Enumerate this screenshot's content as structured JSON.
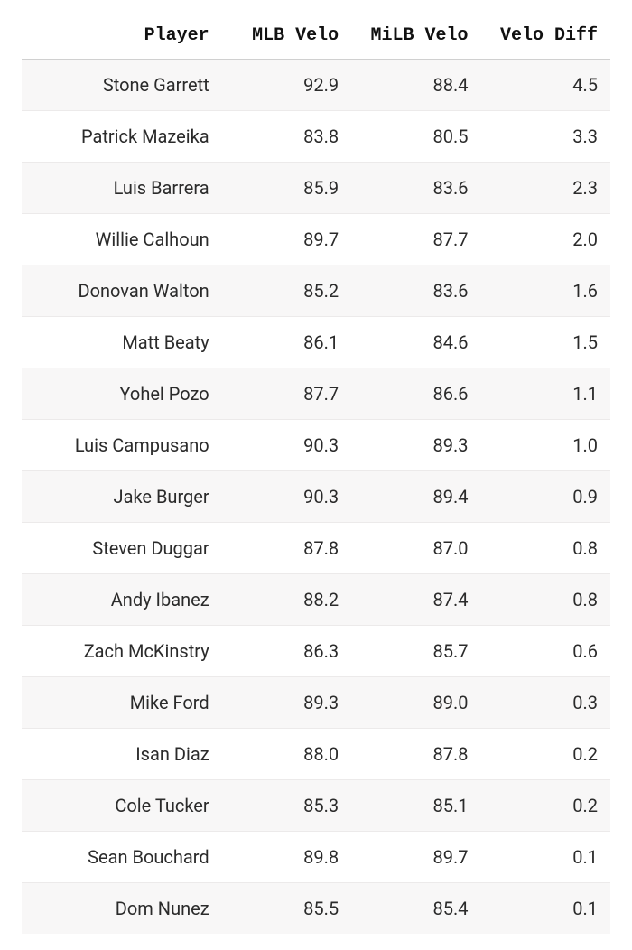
{
  "table": {
    "columns": [
      {
        "key": "player",
        "label": "Player"
      },
      {
        "key": "mlb_velo",
        "label": "MLB Velo"
      },
      {
        "key": "milb_velo",
        "label": "MiLB Velo"
      },
      {
        "key": "velo_diff",
        "label": "Velo Diff"
      }
    ],
    "rows": [
      {
        "player": "Stone Garrett",
        "mlb_velo": "92.9",
        "milb_velo": "88.4",
        "velo_diff": "4.5"
      },
      {
        "player": "Patrick Mazeika",
        "mlb_velo": "83.8",
        "milb_velo": "80.5",
        "velo_diff": "3.3"
      },
      {
        "player": "Luis Barrera",
        "mlb_velo": "85.9",
        "milb_velo": "83.6",
        "velo_diff": "2.3"
      },
      {
        "player": "Willie Calhoun",
        "mlb_velo": "89.7",
        "milb_velo": "87.7",
        "velo_diff": "2.0"
      },
      {
        "player": "Donovan Walton",
        "mlb_velo": "85.2",
        "milb_velo": "83.6",
        "velo_diff": "1.6"
      },
      {
        "player": "Matt Beaty",
        "mlb_velo": "86.1",
        "milb_velo": "84.6",
        "velo_diff": "1.5"
      },
      {
        "player": "Yohel Pozo",
        "mlb_velo": "87.7",
        "milb_velo": "86.6",
        "velo_diff": "1.1"
      },
      {
        "player": "Luis Campusano",
        "mlb_velo": "90.3",
        "milb_velo": "89.3",
        "velo_diff": "1.0"
      },
      {
        "player": "Jake Burger",
        "mlb_velo": "90.3",
        "milb_velo": "89.4",
        "velo_diff": "0.9"
      },
      {
        "player": "Steven Duggar",
        "mlb_velo": "87.8",
        "milb_velo": "87.0",
        "velo_diff": "0.8"
      },
      {
        "player": "Andy Ibanez",
        "mlb_velo": "88.2",
        "milb_velo": "87.4",
        "velo_diff": "0.8"
      },
      {
        "player": "Zach McKinstry",
        "mlb_velo": "86.3",
        "milb_velo": "85.7",
        "velo_diff": "0.6"
      },
      {
        "player": "Mike Ford",
        "mlb_velo": "89.3",
        "milb_velo": "89.0",
        "velo_diff": "0.3"
      },
      {
        "player": "Isan Diaz",
        "mlb_velo": "88.0",
        "milb_velo": "87.8",
        "velo_diff": "0.2"
      },
      {
        "player": "Cole Tucker",
        "mlb_velo": "85.3",
        "milb_velo": "85.1",
        "velo_diff": "0.2"
      },
      {
        "player": "Sean Bouchard",
        "mlb_velo": "89.8",
        "milb_velo": "89.7",
        "velo_diff": "0.1"
      },
      {
        "player": "Dom Nunez",
        "mlb_velo": "85.5",
        "milb_velo": "85.4",
        "velo_diff": "0.1"
      }
    ],
    "style": {
      "header_font": "monospace",
      "header_fontsize_pt": 15,
      "body_fontsize_pt": 15,
      "text_align": "right",
      "row_stripe_color": "#f8f7f7",
      "row_border_color": "#eceaea",
      "header_border_color": "#d0d0d0",
      "background_color": "#ffffff",
      "text_color": "#2b2b2b"
    }
  }
}
